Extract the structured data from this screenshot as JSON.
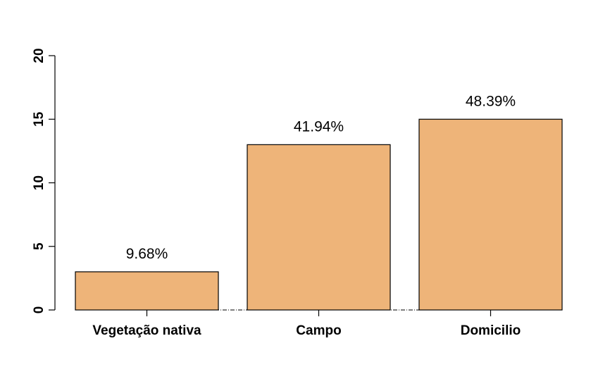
{
  "chart_data": {
    "type": "bar",
    "title": "",
    "xlabel": "",
    "ylabel": "",
    "categories": [
      "Vegetação nativa",
      "Campo",
      "Domicilio"
    ],
    "values": [
      3,
      13,
      15
    ],
    "data_labels": [
      "9.68%",
      "41.94%",
      "48.39%"
    ],
    "ylim": [
      0,
      20
    ],
    "yticks": [
      0,
      5,
      10,
      15,
      20
    ],
    "ytick_labels": [
      "0",
      "5",
      "10",
      "15",
      "20"
    ],
    "bar_color": "#EEB479",
    "bar_edge_color": "#000000",
    "baseline_style": "dash-dot",
    "grid": false,
    "legend": "none"
  }
}
